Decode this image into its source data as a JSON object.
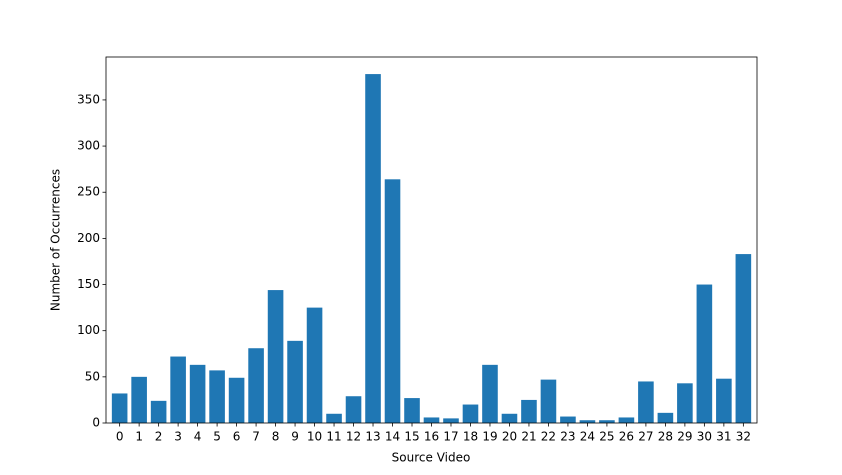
{
  "chart_data": {
    "type": "bar",
    "x_label": "Source Video",
    "y_label": "Number of Occurrences",
    "categories": [
      "0",
      "1",
      "2",
      "3",
      "4",
      "5",
      "6",
      "7",
      "8",
      "9",
      "10",
      "11",
      "12",
      "13",
      "14",
      "15",
      "16",
      "17",
      "18",
      "19",
      "20",
      "21",
      "22",
      "23",
      "24",
      "25",
      "26",
      "27",
      "28",
      "29",
      "30",
      "31",
      "32"
    ],
    "values": [
      32,
      50,
      24,
      72,
      63,
      57,
      49,
      81,
      144,
      89,
      125,
      10,
      29,
      378,
      264,
      27,
      6,
      5,
      20,
      63,
      10,
      25,
      47,
      7,
      3,
      3,
      6,
      45,
      11,
      43,
      150,
      48,
      183
    ],
    "color": "#1f77b4",
    "ylim": [
      0,
      396.5
    ],
    "yticks": [
      0,
      50,
      100,
      150,
      200,
      250,
      300,
      350
    ],
    "grid": false
  }
}
